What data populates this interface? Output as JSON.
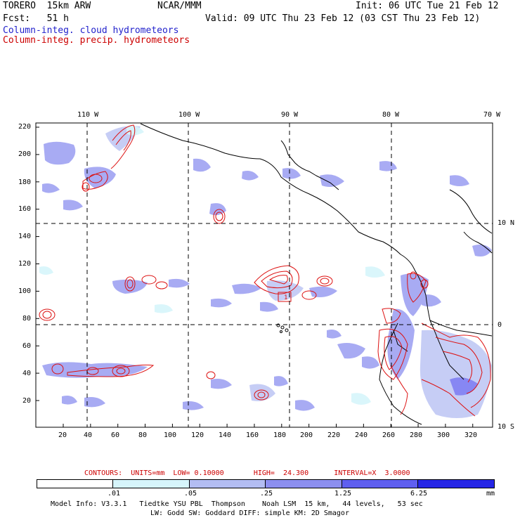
{
  "header": {
    "model": "TORERO  15km ARW",
    "org": "NCAR/MMM",
    "init": "Init: 06 UTC Tue 21 Feb 12",
    "fcst": "Fcst:   51 h",
    "valid": "Valid: 09 UTC Thu 23 Feb 12 (03 CST Thu 23 Feb 12)",
    "field1": "Column-integ. cloud hydrometeors",
    "field2": "Column-integ. precip. hydrometeors",
    "field1_color": "#2222cc",
    "field2_color": "#cc0000"
  },
  "map": {
    "lon_labels": [
      "110 W",
      "100 W",
      "90 W",
      "80 W",
      "70 W"
    ],
    "lat_labels": [
      "10 N",
      "0",
      "10 S"
    ],
    "y_ticks": [
      "220",
      "200",
      "180",
      "160",
      "140",
      "120",
      "100",
      "80",
      "60",
      "40",
      "20"
    ],
    "x_ticks": [
      "20",
      "40",
      "60",
      "80",
      "100",
      "120",
      "140",
      "160",
      "180",
      "200",
      "220",
      "240",
      "260",
      "280",
      "300",
      "320"
    ],
    "contour_label": "1"
  },
  "contour_info": "CONTOURS:  UNITS=mm  LOW= 0.10000       HIGH=  24.300      INTERVAL=X  3.0000",
  "legend": {
    "thresholds": [
      ".01",
      ".05",
      ".25",
      "1.25",
      "6.25"
    ],
    "unit": "mm",
    "colors": [
      "#ffffff",
      "#d6f5fb",
      "#b3bdf2",
      "#8c8ff0",
      "#5f5ff0",
      "#2626e6"
    ]
  },
  "footer": {
    "line1": "Model Info: V3.3.1   Tiedtke YSU PBL  Thompson    Noah LSM  15 km,   44 levels,   53 sec",
    "line2": "LW: Godd SW: Goddard DIFF: simple KM: 2D Smagor"
  }
}
